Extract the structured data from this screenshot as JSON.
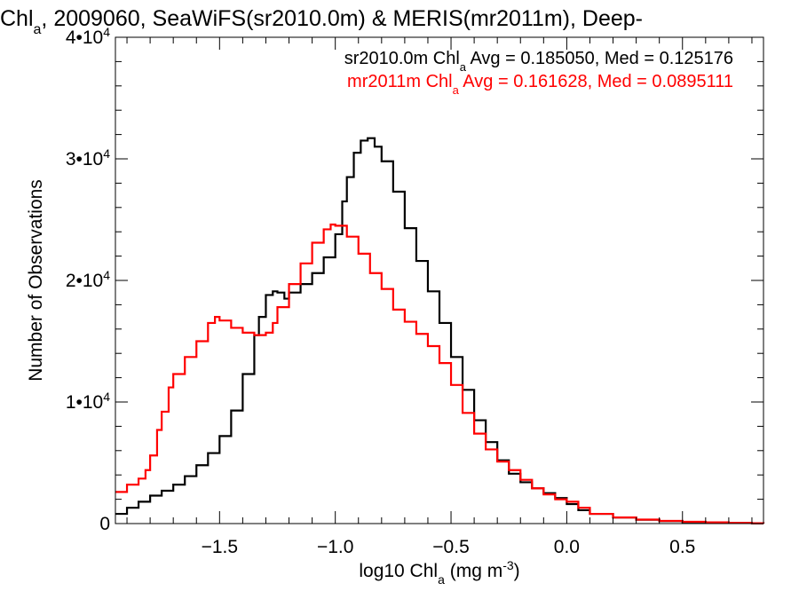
{
  "chart_data": {
    "type": "line",
    "step": true,
    "title": {
      "prefix": "Chl",
      "sub": "a",
      "suffix": ", 2009060, SeaWiFS(sr2010.0m) & MERIS(mr2011m), Deep-"
    },
    "xlabel": {
      "prefix": "log10 Chl",
      "sub": "a",
      "mid": " (mg m",
      "sup": "-3",
      "suffix": ")"
    },
    "ylabel": "Number of Observations",
    "xlim": [
      -1.95,
      0.85
    ],
    "ylim": [
      0,
      40000
    ],
    "xticks": [
      {
        "value": -1.5,
        "label": "−1.5"
      },
      {
        "value": -1.0,
        "label": "−1.0"
      },
      {
        "value": -0.5,
        "label": "−0.5"
      },
      {
        "value": 0.0,
        "label": "0.0"
      },
      {
        "value": 0.5,
        "label": "0.5"
      }
    ],
    "yticks": [
      {
        "value": 0,
        "base": "0",
        "exp": ""
      },
      {
        "value": 10000,
        "base": "1•10",
        "exp": "4"
      },
      {
        "value": 20000,
        "base": "2•10",
        "exp": "4"
      },
      {
        "value": 30000,
        "base": "3•10",
        "exp": "4"
      },
      {
        "value": 40000,
        "base": "4•10",
        "exp": "4"
      }
    ],
    "legend": [
      {
        "prefix": "sr2010.0m Chl",
        "sub": "a",
        "suffix": " Avg = 0.185050, Med = 0.125176",
        "color": "#000000"
      },
      {
        "prefix": "mr2011m Chl",
        "sub": "a",
        "suffix": " Avg = 0.161628, Med = 0.0895111",
        "color": "#ff0000"
      }
    ],
    "series": [
      {
        "name": "sr2010.0m",
        "color": "#000000",
        "points": [
          [
            -1.95,
            800
          ],
          [
            -1.9,
            1300
          ],
          [
            -1.85,
            1800
          ],
          [
            -1.8,
            2300
          ],
          [
            -1.75,
            2700
          ],
          [
            -1.7,
            3200
          ],
          [
            -1.65,
            3900
          ],
          [
            -1.6,
            4800
          ],
          [
            -1.55,
            5800
          ],
          [
            -1.5,
            7200
          ],
          [
            -1.45,
            9300
          ],
          [
            -1.4,
            12300
          ],
          [
            -1.35,
            15500
          ],
          [
            -1.33,
            17000
          ],
          [
            -1.3,
            18800
          ],
          [
            -1.27,
            19100
          ],
          [
            -1.25,
            19000
          ],
          [
            -1.22,
            18500
          ],
          [
            -1.2,
            19000
          ],
          [
            -1.15,
            19700
          ],
          [
            -1.1,
            20600
          ],
          [
            -1.05,
            21900
          ],
          [
            -1.0,
            23800
          ],
          [
            -0.97,
            26500
          ],
          [
            -0.95,
            28500
          ],
          [
            -0.92,
            30500
          ],
          [
            -0.89,
            31500
          ],
          [
            -0.86,
            31700
          ],
          [
            -0.83,
            31000
          ],
          [
            -0.8,
            29800
          ],
          [
            -0.75,
            27300
          ],
          [
            -0.7,
            24300
          ],
          [
            -0.65,
            21600
          ],
          [
            -0.6,
            19100
          ],
          [
            -0.55,
            16500
          ],
          [
            -0.5,
            13700
          ],
          [
            -0.45,
            11000
          ],
          [
            -0.4,
            8500
          ],
          [
            -0.35,
            6700
          ],
          [
            -0.3,
            5200
          ],
          [
            -0.25,
            4100
          ],
          [
            -0.2,
            3400
          ],
          [
            -0.15,
            2900
          ],
          [
            -0.1,
            2500
          ],
          [
            -0.05,
            2100
          ],
          [
            0.0,
            1600
          ],
          [
            0.05,
            1100
          ],
          [
            0.1,
            800
          ],
          [
            0.2,
            500
          ],
          [
            0.3,
            320
          ],
          [
            0.4,
            200
          ],
          [
            0.5,
            130
          ],
          [
            0.6,
            80
          ],
          [
            0.7,
            40
          ],
          [
            0.8,
            20
          ],
          [
            0.85,
            10
          ]
        ]
      },
      {
        "name": "mr2011m",
        "color": "#ff0000",
        "points": [
          [
            -1.95,
            2600
          ],
          [
            -1.9,
            3200
          ],
          [
            -1.85,
            3700
          ],
          [
            -1.82,
            4400
          ],
          [
            -1.8,
            5600
          ],
          [
            -1.77,
            7700
          ],
          [
            -1.75,
            9200
          ],
          [
            -1.72,
            11200
          ],
          [
            -1.7,
            12300
          ],
          [
            -1.65,
            13700
          ],
          [
            -1.6,
            15000
          ],
          [
            -1.55,
            16500
          ],
          [
            -1.52,
            17000
          ],
          [
            -1.5,
            16700
          ],
          [
            -1.45,
            16100
          ],
          [
            -1.4,
            15700
          ],
          [
            -1.35,
            15500
          ],
          [
            -1.3,
            15700
          ],
          [
            -1.27,
            16500
          ],
          [
            -1.25,
            17800
          ],
          [
            -1.2,
            19700
          ],
          [
            -1.15,
            21400
          ],
          [
            -1.1,
            23100
          ],
          [
            -1.05,
            24200
          ],
          [
            -1.02,
            24600
          ],
          [
            -1.0,
            24500
          ],
          [
            -0.95,
            23600
          ],
          [
            -0.9,
            22200
          ],
          [
            -0.85,
            20600
          ],
          [
            -0.8,
            19300
          ],
          [
            -0.75,
            17600
          ],
          [
            -0.7,
            16600
          ],
          [
            -0.65,
            15600
          ],
          [
            -0.6,
            14600
          ],
          [
            -0.55,
            13200
          ],
          [
            -0.5,
            11400
          ],
          [
            -0.45,
            9100
          ],
          [
            -0.4,
            7400
          ],
          [
            -0.35,
            6100
          ],
          [
            -0.3,
            5100
          ],
          [
            -0.25,
            4400
          ],
          [
            -0.2,
            3600
          ],
          [
            -0.15,
            2900
          ],
          [
            -0.1,
            2400
          ],
          [
            -0.05,
            2000
          ],
          [
            0.0,
            1800
          ],
          [
            0.05,
            1300
          ],
          [
            0.1,
            800
          ],
          [
            0.2,
            500
          ],
          [
            0.3,
            330
          ],
          [
            0.4,
            220
          ],
          [
            0.5,
            150
          ],
          [
            0.6,
            100
          ],
          [
            0.7,
            60
          ],
          [
            0.8,
            30
          ],
          [
            0.85,
            20
          ]
        ]
      }
    ]
  }
}
